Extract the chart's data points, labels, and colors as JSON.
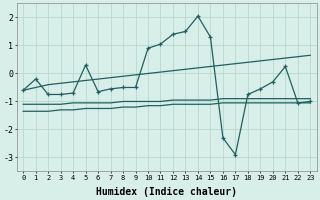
{
  "xlabel": "Humidex (Indice chaleur)",
  "background_color": "#d8eee8",
  "grid_color": "#b8d8d0",
  "line_color": "#206060",
  "xlim": [
    -0.5,
    23.5
  ],
  "ylim": [
    -3.5,
    2.5
  ],
  "yticks": [
    -3,
    -2,
    -1,
    0,
    1,
    2
  ],
  "xticks": [
    0,
    1,
    2,
    3,
    4,
    5,
    6,
    7,
    8,
    9,
    10,
    11,
    12,
    13,
    14,
    15,
    16,
    17,
    18,
    19,
    20,
    21,
    22,
    23
  ],
  "series": [
    {
      "x": [
        0,
        1,
        2,
        3,
        4,
        5,
        6,
        7,
        8,
        9,
        10,
        11,
        12,
        13,
        14,
        15,
        16,
        17,
        18,
        19,
        20,
        21,
        22,
        23
      ],
      "y": [
        -0.6,
        -0.5,
        -0.4,
        -0.35,
        -0.3,
        -0.25,
        -0.2,
        -0.15,
        -0.1,
        -0.05,
        0.0,
        0.05,
        0.1,
        0.15,
        0.2,
        0.25,
        0.3,
        0.35,
        0.4,
        0.45,
        0.5,
        0.55,
        0.6,
        0.65
      ],
      "marker": false
    },
    {
      "x": [
        0,
        1,
        2,
        3,
        4,
        5,
        6,
        7,
        8,
        9,
        10,
        11,
        12,
        13,
        14,
        15,
        16,
        17,
        18,
        19,
        20,
        21,
        22,
        23
      ],
      "y": [
        -1.1,
        -1.1,
        -1.1,
        -1.1,
        -1.05,
        -1.05,
        -1.05,
        -1.05,
        -1.0,
        -1.0,
        -1.0,
        -1.0,
        -0.95,
        -0.95,
        -0.95,
        -0.95,
        -0.9,
        -0.9,
        -0.9,
        -0.9,
        -0.9,
        -0.9,
        -0.9,
        -0.9
      ],
      "marker": false
    },
    {
      "x": [
        0,
        1,
        2,
        3,
        4,
        5,
        6,
        7,
        8,
        9,
        10,
        11,
        12,
        13,
        14,
        15,
        16,
        17,
        18,
        19,
        20,
        21,
        22,
        23
      ],
      "y": [
        -1.35,
        -1.35,
        -1.35,
        -1.3,
        -1.3,
        -1.25,
        -1.25,
        -1.25,
        -1.2,
        -1.2,
        -1.15,
        -1.15,
        -1.1,
        -1.1,
        -1.1,
        -1.1,
        -1.05,
        -1.05,
        -1.05,
        -1.05,
        -1.05,
        -1.05,
        -1.05,
        -1.05
      ],
      "marker": false
    },
    {
      "x": [
        0,
        1,
        2,
        3,
        4,
        5,
        6,
        7,
        8,
        9,
        10,
        11,
        12,
        13,
        14,
        15,
        16,
        17,
        18,
        19,
        20,
        21,
        22,
        23
      ],
      "y": [
        -0.6,
        -0.2,
        -0.75,
        -0.75,
        -0.7,
        0.3,
        -0.65,
        -0.55,
        -0.5,
        -0.5,
        0.9,
        1.05,
        1.4,
        1.5,
        2.05,
        1.3,
        -2.3,
        -2.9,
        -0.75,
        -0.55,
        -0.3,
        0.25,
        -1.05,
        -1.0
      ],
      "marker": true
    }
  ]
}
